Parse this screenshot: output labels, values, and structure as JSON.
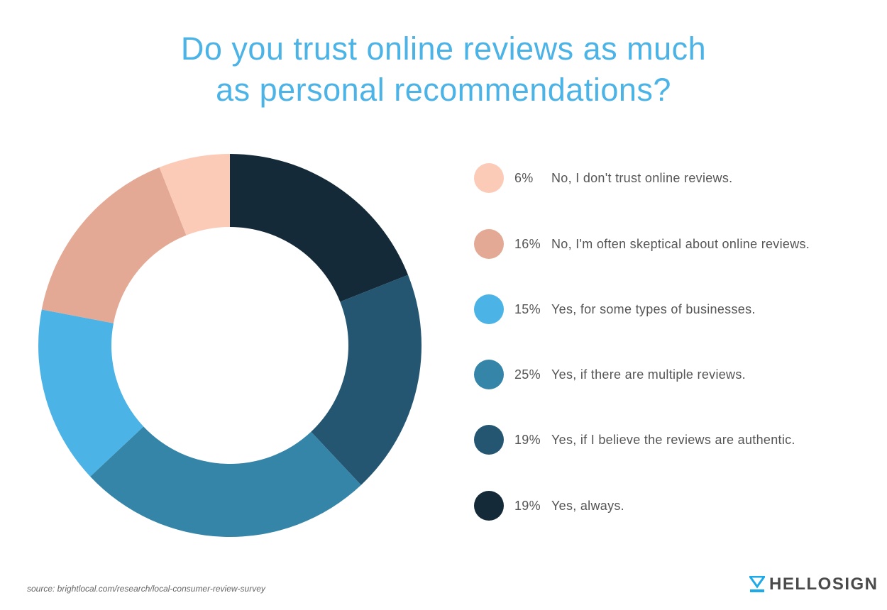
{
  "chart_data": {
    "type": "pie",
    "variant": "donut",
    "title": "Do you trust online reviews as much as personal recommendations?",
    "title_lines": [
      "Do you trust online reviews as much",
      "as personal recommendations?"
    ],
    "legend_position": "right",
    "slices": [
      {
        "label": "Yes, always.",
        "value": 19,
        "pct_label": "19%",
        "color": "#142A38"
      },
      {
        "label": "Yes, if I believe the reviews are authentic.",
        "value": 19,
        "pct_label": "19%",
        "color": "#245672"
      },
      {
        "label": "Yes, if there are multiple reviews.",
        "value": 25,
        "pct_label": "25%",
        "color": "#3585A9"
      },
      {
        "label": "Yes, for some types of businesses.",
        "value": 15,
        "pct_label": "15%",
        "color": "#4BB3E6"
      },
      {
        "label": "No, I'm often skeptical about online reviews.",
        "value": 16,
        "pct_label": "16%",
        "color": "#E4A994"
      },
      {
        "label": "No, I don't trust online reviews.",
        "value": 6,
        "pct_label": "6%",
        "color": "#FBCBB8"
      }
    ],
    "legend_order": [
      5,
      4,
      3,
      2,
      1,
      0
    ]
  },
  "footer": {
    "source": "source: brightlocal.com/research/local-consumer-review-survey",
    "logo_text": "HELLOSIGN",
    "logo_color": "#1EAAE7"
  }
}
